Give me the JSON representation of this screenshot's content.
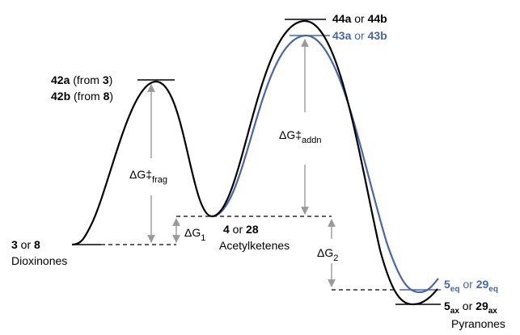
{
  "colors": {
    "black": "#000000",
    "blue": "#4a65a8",
    "gray": "#9a9a9a"
  },
  "labels": {
    "ts1": {
      "c1": "42a",
      "t1": " (from ",
      "c2": "3",
      "t2": ")",
      "c3": "42b",
      "t3": " (from ",
      "c4": "8",
      "t4": ")"
    },
    "start": {
      "c1": "3",
      "t1": " or ",
      "c2": "8",
      "name": "Dioxinones"
    },
    "mid": {
      "c1": "4",
      "t1": " or ",
      "c2": "28",
      "name": "Acetylketenes"
    },
    "ts2_black": {
      "c1": "44a",
      "t1": " or ",
      "c2": "44b"
    },
    "ts2_blue": {
      "c1": "43a",
      "t1": " or ",
      "c2": "43b"
    },
    "prod_eq": {
      "c1": "5",
      "s1": "eq",
      "t1": " or ",
      "c2": "29",
      "s2": "eq"
    },
    "prod_ax": {
      "c1": "5",
      "s1": "ax",
      "t1": " or ",
      "c2": "29",
      "s2": "ax",
      "name": "Pyranones"
    },
    "dg_frag": {
      "main": "ΔG‡",
      "sub": "frag"
    },
    "dg_addn": {
      "main": "ΔG‡",
      "sub": "addn"
    },
    "dg1": {
      "main": "ΔG",
      "sub": "1"
    },
    "dg2": {
      "main": "ΔG",
      "sub": "2"
    }
  }
}
